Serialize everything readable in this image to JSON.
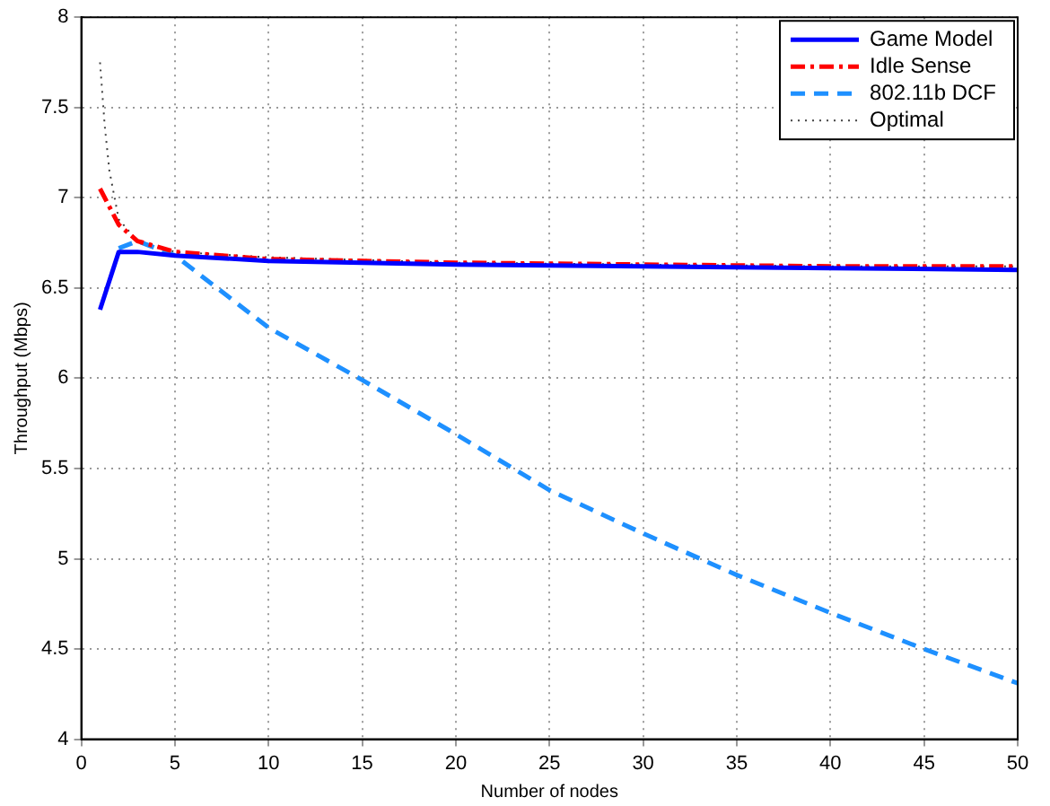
{
  "chart_data": {
    "type": "line",
    "xlabel": "Number of nodes",
    "ylabel": "Throughput (Mbps)",
    "xlim": [
      0,
      50
    ],
    "xticks": [
      0,
      5,
      10,
      15,
      20,
      25,
      30,
      35,
      40,
      45,
      50
    ],
    "ylim": [
      4,
      8
    ],
    "yticks": [
      4,
      4.5,
      5,
      5.5,
      6,
      6.5,
      7,
      7.5,
      8
    ],
    "grid": true,
    "legend": "top right",
    "marker": "none",
    "series": [
      {
        "name": "Game Model",
        "color": "#0000ff",
        "line_style": "solid",
        "x": [
          1,
          2,
          3,
          5,
          10,
          20,
          30,
          40,
          50
        ],
        "values": [
          6.38,
          6.7,
          6.7,
          6.68,
          6.65,
          6.63,
          6.62,
          6.61,
          6.6
        ]
      },
      {
        "name": "Idle Sense",
        "color": "#ff0000",
        "line_style": "dashdot",
        "x": [
          1,
          1.5,
          2,
          3,
          5,
          10,
          20,
          30,
          40,
          50
        ],
        "values": [
          7.05,
          6.95,
          6.85,
          6.76,
          6.7,
          6.66,
          6.64,
          6.63,
          6.62,
          6.62
        ]
      },
      {
        "name": "802.11b DCF",
        "color": "#1e90ff",
        "line_style": "dashed",
        "x": [
          2,
          3,
          5,
          10,
          15,
          20,
          25,
          30,
          35,
          40,
          45,
          50
        ],
        "values": [
          6.72,
          6.76,
          6.68,
          6.28,
          5.99,
          5.69,
          5.38,
          5.14,
          4.91,
          4.7,
          4.5,
          4.31
        ]
      },
      {
        "name": "Optimal",
        "color": "#404040",
        "line_style": "dotted",
        "x": [
          1,
          1.25,
          1.5,
          2,
          3,
          5,
          10,
          20,
          30,
          40,
          50
        ],
        "values": [
          7.75,
          7.4,
          7.15,
          6.88,
          6.76,
          6.7,
          6.67,
          6.64,
          6.63,
          6.62,
          6.62
        ]
      }
    ]
  }
}
